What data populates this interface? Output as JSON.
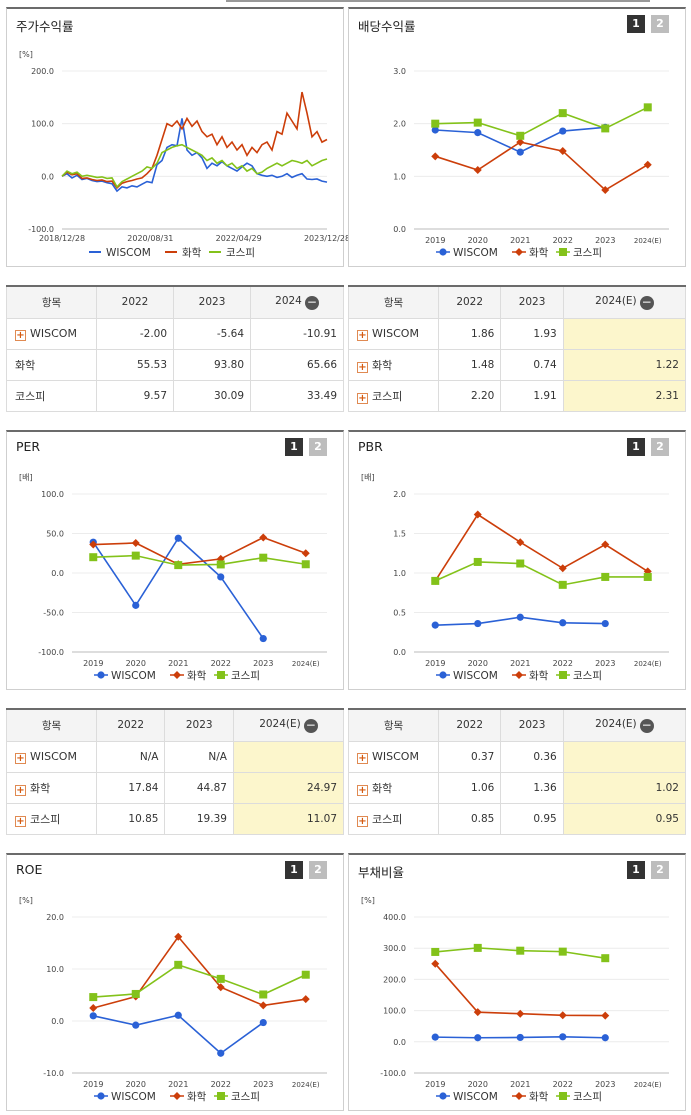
{
  "colors": {
    "wiscom": "#2a61d6",
    "chem": "#cc3e0a",
    "kospi": "#83c21a"
  },
  "icons": {
    "expand": "plus-box-icon",
    "collapse": "minus-circle-icon"
  },
  "pager": {
    "p1": "1",
    "p2": "2"
  },
  "panels": {
    "stock": {
      "title": "주가수익률"
    },
    "dividend": {
      "title": "배당수익률"
    },
    "per": {
      "title": "PER"
    },
    "pbr": {
      "title": "PBR"
    },
    "roe": {
      "title": "ROE"
    },
    "debt": {
      "title": "부채비율"
    }
  },
  "tables": {
    "stock": {
      "headers": [
        "항목",
        "2022",
        "2023",
        "2024"
      ],
      "rows": [
        {
          "name": "WISCOM",
          "v": [
            "-2.00",
            "-5.64",
            "-10.91"
          ]
        },
        {
          "name": "화학",
          "v": [
            "55.53",
            "93.80",
            "65.66"
          ]
        },
        {
          "name": "코스피",
          "v": [
            "9.57",
            "30.09",
            "33.49"
          ]
        }
      ]
    },
    "dividend": {
      "headers": [
        "항목",
        "2022",
        "2023",
        "2024(E)"
      ],
      "rows": [
        {
          "name": "WISCOM",
          "v": [
            "1.86",
            "1.93",
            ""
          ]
        },
        {
          "name": "화학",
          "v": [
            "1.48",
            "0.74",
            "1.22"
          ]
        },
        {
          "name": "코스피",
          "v": [
            "2.20",
            "1.91",
            "2.31"
          ]
        }
      ]
    },
    "per": {
      "headers": [
        "항목",
        "2022",
        "2023",
        "2024(E)"
      ],
      "rows": [
        {
          "name": "WISCOM",
          "v": [
            "N/A",
            "N/A",
            ""
          ]
        },
        {
          "name": "화학",
          "v": [
            "17.84",
            "44.87",
            "24.97"
          ]
        },
        {
          "name": "코스피",
          "v": [
            "10.85",
            "19.39",
            "11.07"
          ]
        }
      ]
    },
    "pbr": {
      "headers": [
        "항목",
        "2022",
        "2023",
        "2024(E)"
      ],
      "rows": [
        {
          "name": "WISCOM",
          "v": [
            "0.37",
            "0.36",
            ""
          ]
        },
        {
          "name": "화학",
          "v": [
            "1.06",
            "1.36",
            "1.02"
          ]
        },
        {
          "name": "코스피",
          "v": [
            "0.85",
            "0.95",
            "0.95"
          ]
        }
      ]
    }
  },
  "chart_data": [
    {
      "id": "stock",
      "type": "line",
      "unit": "[%]",
      "yticks": [
        "200.0",
        "100.0",
        "0.0",
        "-100.0"
      ],
      "ylim": [
        -100,
        200
      ],
      "xticks": [
        "2018/12/28",
        "2020/08/31",
        "2022/04/29",
        "2023/12/28"
      ],
      "legend": [
        "WISCOM",
        "화학",
        "코스피"
      ],
      "series": [
        {
          "name": "WISCOM",
          "values": [
            0,
            5,
            -3,
            2,
            -6,
            -4,
            -8,
            -10,
            -9,
            -12,
            -14,
            -28,
            -20,
            -22,
            -18,
            -20,
            -15,
            -10,
            -12,
            22,
            30,
            55,
            60,
            58,
            110,
            50,
            40,
            45,
            35,
            15,
            25,
            20,
            28,
            20,
            15,
            10,
            18,
            25,
            20,
            5,
            2,
            0,
            2,
            -2,
            0,
            5,
            -2,
            2,
            5,
            -5,
            -6,
            -5,
            -9,
            -11
          ]
        },
        {
          "name": "화학",
          "values": [
            0,
            8,
            3,
            5,
            -4,
            -3,
            -6,
            -8,
            -7,
            -10,
            -9,
            -22,
            -13,
            -10,
            -8,
            -5,
            -3,
            5,
            15,
            40,
            70,
            100,
            95,
            105,
            90,
            110,
            95,
            105,
            85,
            75,
            80,
            60,
            75,
            55,
            65,
            50,
            60,
            40,
            55,
            45,
            60,
            65,
            50,
            85,
            80,
            120,
            105,
            90,
            160,
            120,
            75,
            85,
            65,
            70
          ]
        },
        {
          "name": "코스피",
          "values": [
            0,
            10,
            5,
            8,
            0,
            2,
            0,
            -2,
            -1,
            -4,
            -3,
            -20,
            -10,
            -5,
            0,
            5,
            10,
            18,
            15,
            25,
            45,
            50,
            55,
            58,
            60,
            55,
            50,
            45,
            40,
            30,
            35,
            25,
            30,
            20,
            25,
            15,
            20,
            10,
            15,
            5,
            8,
            15,
            20,
            25,
            20,
            25,
            30,
            28,
            25,
            30,
            20,
            25,
            30,
            33
          ]
        }
      ]
    },
    {
      "id": "dividend",
      "type": "line",
      "unit": "",
      "yticks": [
        "3.0",
        "2.0",
        "1.0",
        "0.0"
      ],
      "ylim": [
        0,
        3
      ],
      "categories": [
        "2019",
        "2020",
        "2021",
        "2022",
        "2023",
        "2024(E)"
      ],
      "legend": [
        "WISCOM",
        "화학",
        "코스피"
      ],
      "series": [
        {
          "name": "WISCOM",
          "values": [
            1.88,
            1.83,
            1.46,
            1.86,
            1.93,
            null
          ]
        },
        {
          "name": "화학",
          "values": [
            1.38,
            1.12,
            1.65,
            1.48,
            0.74,
            1.22
          ]
        },
        {
          "name": "코스피",
          "values": [
            2.0,
            2.02,
            1.77,
            2.2,
            1.91,
            2.31
          ]
        }
      ]
    },
    {
      "id": "per",
      "type": "line",
      "unit": "[배]",
      "yticks": [
        "100.0",
        "50.0",
        "0.0",
        "-50.0",
        "-100.0"
      ],
      "ylim": [
        -100,
        100
      ],
      "categories": [
        "2019",
        "2020",
        "2021",
        "2022",
        "2023",
        "2024(E)"
      ],
      "legend": [
        "WISCOM",
        "화학",
        "코스피"
      ],
      "series": [
        {
          "name": "WISCOM",
          "values": [
            39,
            -41,
            44,
            -5,
            -83,
            null
          ]
        },
        {
          "name": "화학",
          "values": [
            36,
            38,
            11,
            17.84,
            44.87,
            24.97
          ]
        },
        {
          "name": "코스피",
          "values": [
            20,
            22,
            10,
            10.85,
            19.39,
            11.07
          ]
        }
      ]
    },
    {
      "id": "pbr",
      "type": "line",
      "unit": "[배]",
      "yticks": [
        "2.0",
        "1.5",
        "1.0",
        "0.5",
        "0.0"
      ],
      "ylim": [
        0,
        2
      ],
      "categories": [
        "2019",
        "2020",
        "2021",
        "2022",
        "2023",
        "2024(E)"
      ],
      "legend": [
        "WISCOM",
        "화학",
        "코스피"
      ],
      "series": [
        {
          "name": "WISCOM",
          "values": [
            0.34,
            0.36,
            0.44,
            0.37,
            0.36,
            null
          ]
        },
        {
          "name": "화학",
          "values": [
            0.9,
            1.74,
            1.39,
            1.06,
            1.36,
            1.02
          ]
        },
        {
          "name": "코스피",
          "values": [
            0.9,
            1.14,
            1.12,
            0.85,
            0.95,
            0.95
          ]
        }
      ]
    },
    {
      "id": "roe",
      "type": "line",
      "unit": "[%]",
      "yticks": [
        "20.0",
        "10.0",
        "0.0",
        "-10.0"
      ],
      "ylim": [
        -10,
        20
      ],
      "categories": [
        "2019",
        "2020",
        "2021",
        "2022",
        "2023",
        "2024(E)"
      ],
      "legend": [
        "WISCOM",
        "화학",
        "코스피"
      ],
      "series": [
        {
          "name": "WISCOM",
          "values": [
            1.0,
            -0.8,
            1.1,
            -6.2,
            -0.3,
            null
          ]
        },
        {
          "name": "화학",
          "values": [
            2.5,
            4.7,
            16.2,
            6.5,
            3.0,
            4.2
          ]
        },
        {
          "name": "코스피",
          "values": [
            4.6,
            5.2,
            10.8,
            8.1,
            5.1,
            8.9
          ]
        }
      ]
    },
    {
      "id": "debt",
      "type": "line",
      "unit": "[%]",
      "yticks": [
        "400.0",
        "300.0",
        "200.0",
        "100.0",
        "0.0",
        "-100.0"
      ],
      "ylim": [
        -100,
        400
      ],
      "categories": [
        "2019",
        "2020",
        "2021",
        "2022",
        "2023",
        "2024(E)"
      ],
      "legend": [
        "WISCOM",
        "화학",
        "코스피"
      ],
      "series": [
        {
          "name": "WISCOM",
          "values": [
            15,
            13,
            14,
            16,
            13,
            null
          ]
        },
        {
          "name": "화학",
          "values": [
            250,
            95,
            90,
            85,
            84,
            null
          ]
        },
        {
          "name": "코스피",
          "values": [
            288,
            301,
            292,
            289,
            268,
            null
          ]
        }
      ]
    }
  ]
}
